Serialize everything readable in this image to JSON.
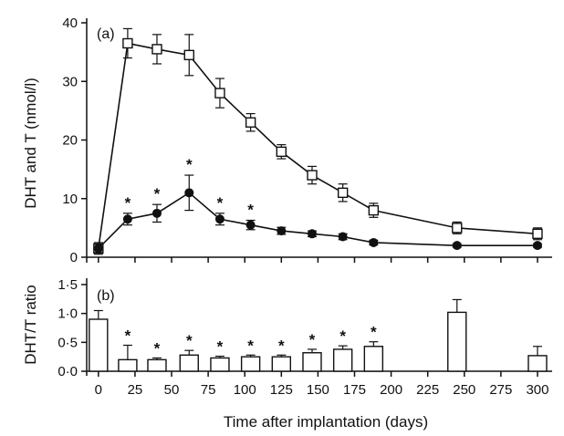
{
  "chart_data": [
    {
      "type": "line",
      "panel_label": "(a)",
      "ylabel": "DHT and T (nmol/l)",
      "xlim": [
        -8,
        310
      ],
      "ylim": [
        0,
        40
      ],
      "yticks": [
        "0",
        "10",
        "20",
        "30",
        "40"
      ],
      "series": [
        {
          "marker": "open-square",
          "x": [
            0,
            20,
            40,
            62,
            83,
            104,
            125,
            146,
            167,
            188,
            245,
            300
          ],
          "y": [
            1.5,
            36.5,
            35.5,
            34.5,
            28,
            23,
            18,
            14,
            11,
            8,
            5,
            4
          ],
          "err": [
            1,
            2.5,
            2.5,
            3.5,
            2.5,
            1.5,
            1.2,
            1.5,
            1.5,
            1.2,
            1,
            1
          ]
        },
        {
          "marker": "filled-circle",
          "x": [
            0,
            20,
            40,
            62,
            83,
            104,
            125,
            146,
            167,
            188,
            245,
            300
          ],
          "y": [
            1.5,
            6.5,
            7.5,
            11,
            6.5,
            5.5,
            4.5,
            4,
            3.5,
            2.5,
            2,
            2
          ],
          "err": [
            0.7,
            1,
            1.5,
            3,
            1,
            0.8,
            0.6,
            0.5,
            0.5,
            0.4,
            0.3,
            0.3
          ],
          "significant": [
            false,
            true,
            true,
            true,
            true,
            true,
            false,
            false,
            false,
            false,
            false,
            false
          ],
          "sig_label": "*"
        }
      ]
    },
    {
      "type": "bar",
      "panel_label": "(b)",
      "ylabel": "DHT/T ratio",
      "xlabel": "Time after implantation (days)",
      "xlim": [
        -8,
        310
      ],
      "ylim": [
        0,
        1.5
      ],
      "yticks": [
        "0·0",
        "0·5",
        "1·0",
        "1·5"
      ],
      "xticks": [
        "0",
        "25",
        "50",
        "75",
        "100",
        "125",
        "150",
        "175",
        "200",
        "225",
        "250",
        "275",
        "300"
      ],
      "x": [
        0,
        20,
        40,
        62,
        83,
        104,
        125,
        146,
        167,
        188,
        245,
        300
      ],
      "values": [
        0.9,
        0.2,
        0.2,
        0.28,
        0.23,
        0.25,
        0.25,
        0.32,
        0.38,
        0.43,
        1.02,
        0.27
      ],
      "err": [
        0.15,
        0.25,
        0.03,
        0.08,
        0.03,
        0.03,
        0.03,
        0.06,
        0.06,
        0.08,
        0.22,
        0.16
      ],
      "significant": [
        false,
        true,
        true,
        true,
        true,
        true,
        true,
        true,
        true,
        true,
        false,
        false
      ],
      "sig_label": "*"
    }
  ]
}
